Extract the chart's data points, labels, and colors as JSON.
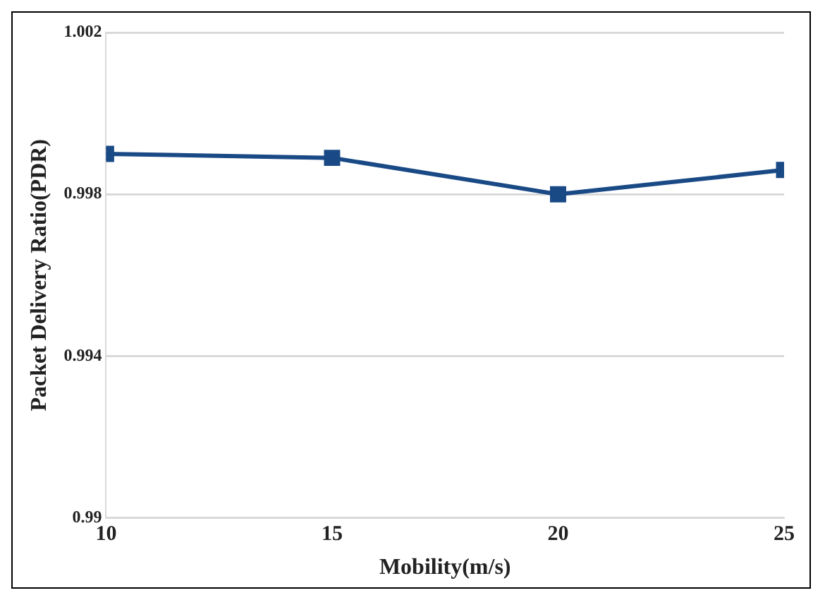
{
  "chart_data": {
    "type": "line",
    "xlabel": "Mobility(m/s)",
    "ylabel": "Packet Delivery Ratio(PDR)",
    "x": [
      10,
      15,
      20,
      25
    ],
    "series": [
      {
        "color": "#1a4a86",
        "values": [
          0.999,
          0.9989,
          0.998,
          0.9986
        ]
      }
    ],
    "xlim": [
      10,
      25
    ],
    "xticks": [
      10,
      15,
      20,
      25
    ],
    "ylim": [
      0.99,
      1.002
    ],
    "yticks": [
      0.99,
      0.994,
      0.998,
      1.002
    ],
    "grid": "y",
    "marker": "square",
    "line_style": "solid",
    "legend": false
  }
}
